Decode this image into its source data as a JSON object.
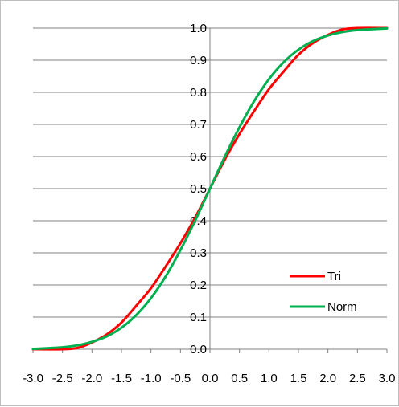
{
  "chart_data": {
    "type": "line",
    "title": "",
    "xlabel": "",
    "ylabel": "",
    "xlim": [
      -3.0,
      3.0
    ],
    "ylim": [
      0.0,
      1.0
    ],
    "x_ticks": [
      "-3.0",
      "-2.5",
      "-2.0",
      "-1.5",
      "-1.0",
      "-0.5",
      "0.0",
      "0.5",
      "1.0",
      "1.5",
      "2.0",
      "2.5",
      "3.0"
    ],
    "y_ticks": [
      "0.0",
      "0.1",
      "0.2",
      "0.3",
      "0.4",
      "0.5",
      "0.6",
      "0.7",
      "0.8",
      "0.9",
      "1.0"
    ],
    "grid": "horizontal",
    "legend_position": "bottom-right",
    "x": [
      -3.0,
      -2.5,
      -2.25,
      -2.0,
      -1.75,
      -1.5,
      -1.25,
      -1.0,
      -0.75,
      -0.5,
      -0.25,
      0.0,
      0.25,
      0.5,
      0.75,
      1.0,
      1.25,
      1.5,
      1.75,
      2.0,
      2.25,
      2.5,
      3.0
    ],
    "series": [
      {
        "name": "Tri",
        "color": "#ff0000",
        "values": [
          0.0,
          0.0,
          0.004,
          0.021,
          0.046,
          0.083,
          0.135,
          0.19,
          0.258,
          0.33,
          0.41,
          0.5,
          0.59,
          0.67,
          0.742,
          0.81,
          0.865,
          0.917,
          0.954,
          0.979,
          0.996,
          1.0,
          1.0
        ]
      },
      {
        "name": "Norm",
        "color": "#00b050",
        "values": [
          0.001,
          0.006,
          0.012,
          0.023,
          0.04,
          0.067,
          0.106,
          0.159,
          0.227,
          0.309,
          0.401,
          0.5,
          0.599,
          0.691,
          0.773,
          0.841,
          0.894,
          0.933,
          0.96,
          0.977,
          0.988,
          0.994,
          0.999
        ]
      }
    ]
  }
}
